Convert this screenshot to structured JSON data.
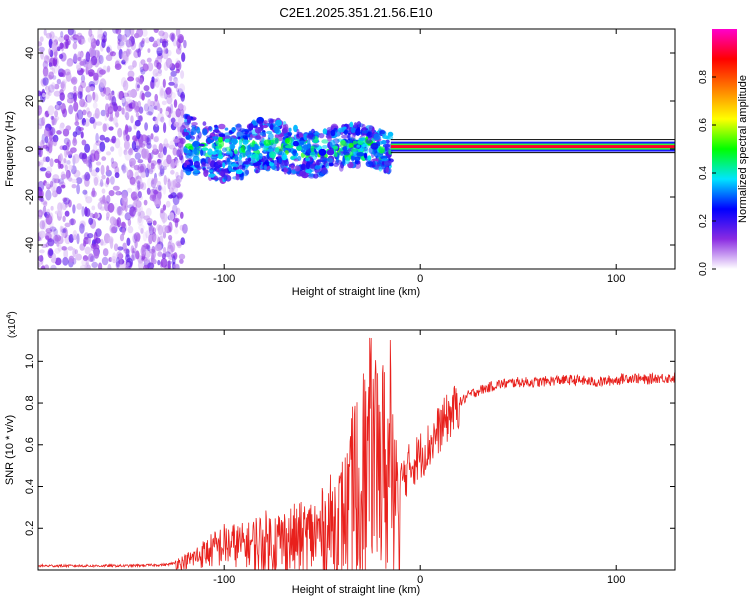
{
  "title": "C2E1.2025.351.21.56.E10",
  "chart_data": [
    {
      "type": "heatmap",
      "panel": "top",
      "xlabel": "Height of straight line (km)",
      "ylabel": "Frequency (Hz)",
      "xlim": [
        -195,
        130
      ],
      "ylim": [
        -50,
        50
      ],
      "xticks": [
        -100,
        0,
        100
      ],
      "xtick_labels": [
        "-100",
        "0",
        "100"
      ],
      "yticks": [
        -40,
        -20,
        0,
        20,
        40
      ],
      "ytick_labels": [
        "-40",
        "-20",
        "0",
        "20",
        "40"
      ],
      "colorbar": {
        "label": "Normalized spectral amplitude",
        "range": [
          0,
          1
        ],
        "ticks": [
          0,
          0.2,
          0.4,
          0.6,
          0.8
        ],
        "tick_labels": [
          "0.0",
          "0.2",
          "0.4",
          "0.6",
          "0.8"
        ],
        "stops": [
          "#ffffff",
          "#8a2be2",
          "#0000ff",
          "#00e5ff",
          "#00ff00",
          "#ffff00",
          "#ff7f00",
          "#ff0000",
          "#ff00cc"
        ]
      },
      "regions": [
        {
          "name": "noise",
          "x_range": [
            -195,
            -120
          ],
          "f_range": [
            -50,
            50
          ],
          "amplitude": 0.1
        },
        {
          "name": "transition",
          "x_range": [
            -120,
            -15
          ],
          "f_range": [
            -12,
            12
          ],
          "amplitude": 0.3
        },
        {
          "name": "tone",
          "x_range": [
            -15,
            130
          ],
          "f_center": 1,
          "amplitude": 0.9
        }
      ]
    },
    {
      "type": "line",
      "panel": "bottom",
      "xlabel": "Height of straight line (km)",
      "ylabel": "SNR (10 * v/v)",
      "y_multiplier": "(x10",
      "y_multiplier_exp": "4",
      "y_multiplier_close": ")",
      "xlim": [
        -195,
        130
      ],
      "ylim": [
        0,
        1.15
      ],
      "xticks": [
        -100,
        0,
        100
      ],
      "xtick_labels": [
        "-100",
        "0",
        "100"
      ],
      "yticks": [
        0.2,
        0.4,
        0.6,
        0.8,
        1.0
      ],
      "ytick_labels": [
        "0.2",
        "0.4",
        "0.6",
        "0.8",
        "1.0"
      ],
      "line_color": "#e8201c",
      "series": [
        {
          "name": "SNR",
          "x": [
            -195,
            -170,
            -150,
            -130,
            -120,
            -110,
            -100,
            -90,
            -80,
            -70,
            -60,
            -50,
            -40,
            -30,
            -25,
            -20,
            -15,
            -12,
            -10,
            -5,
            0,
            5,
            10,
            15,
            20,
            25,
            30,
            40,
            50,
            60,
            70,
            80,
            90,
            100,
            105,
            110,
            115,
            120,
            130
          ],
          "y": [
            0.02,
            0.02,
            0.02,
            0.025,
            0.04,
            0.08,
            0.12,
            0.12,
            0.13,
            0.14,
            0.15,
            0.18,
            0.25,
            0.35,
            0.6,
            0.5,
            0.45,
            0.55,
            0.42,
            0.5,
            0.55,
            0.6,
            0.68,
            0.74,
            0.8,
            0.84,
            0.86,
            0.89,
            0.9,
            0.9,
            0.91,
            0.91,
            0.9,
            0.91,
            0.92,
            0.92,
            0.91,
            0.92,
            0.92
          ]
        }
      ]
    }
  ]
}
